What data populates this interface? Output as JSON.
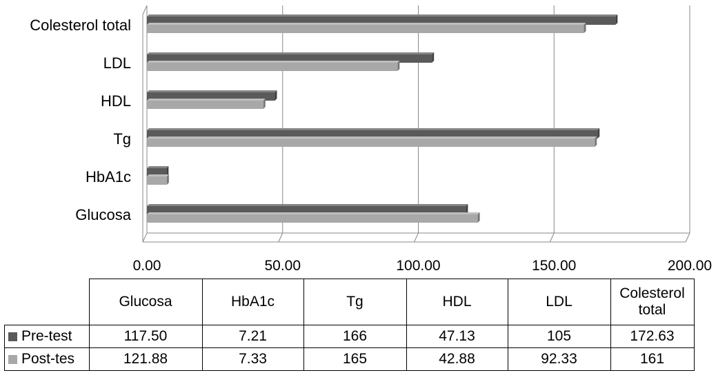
{
  "chart_data": {
    "type": "bar",
    "orientation": "horizontal",
    "style": "3d",
    "categories": [
      "Glucosa",
      "HbA1c",
      "Tg",
      "HDL",
      "LDL",
      "Colesterol total"
    ],
    "axis_tick_labels": [
      "0.00",
      "50.00",
      "100.00",
      "150.00",
      "200.00"
    ],
    "xlim": [
      0,
      200
    ],
    "grid": true,
    "legend": "data-table",
    "series": [
      {
        "name": "Pre-test",
        "color": "#5a5a5a",
        "values": [
          117.5,
          7.21,
          166,
          47.13,
          105,
          172.63
        ],
        "display": [
          "117.50",
          "7.21",
          "166",
          "47.13",
          "105",
          "172.63"
        ]
      },
      {
        "name": "Post-tes",
        "color": "#a8a8a8",
        "values": [
          121.88,
          7.33,
          165,
          42.88,
          92.33,
          161
        ],
        "display": [
          "121.88",
          "7.33",
          "165",
          "42.88",
          "92.33",
          "161"
        ]
      }
    ]
  },
  "table": {
    "headers": [
      "Glucosa",
      "HbA1c",
      "Tg",
      "HDL",
      "LDL",
      "Colesterol total"
    ]
  }
}
